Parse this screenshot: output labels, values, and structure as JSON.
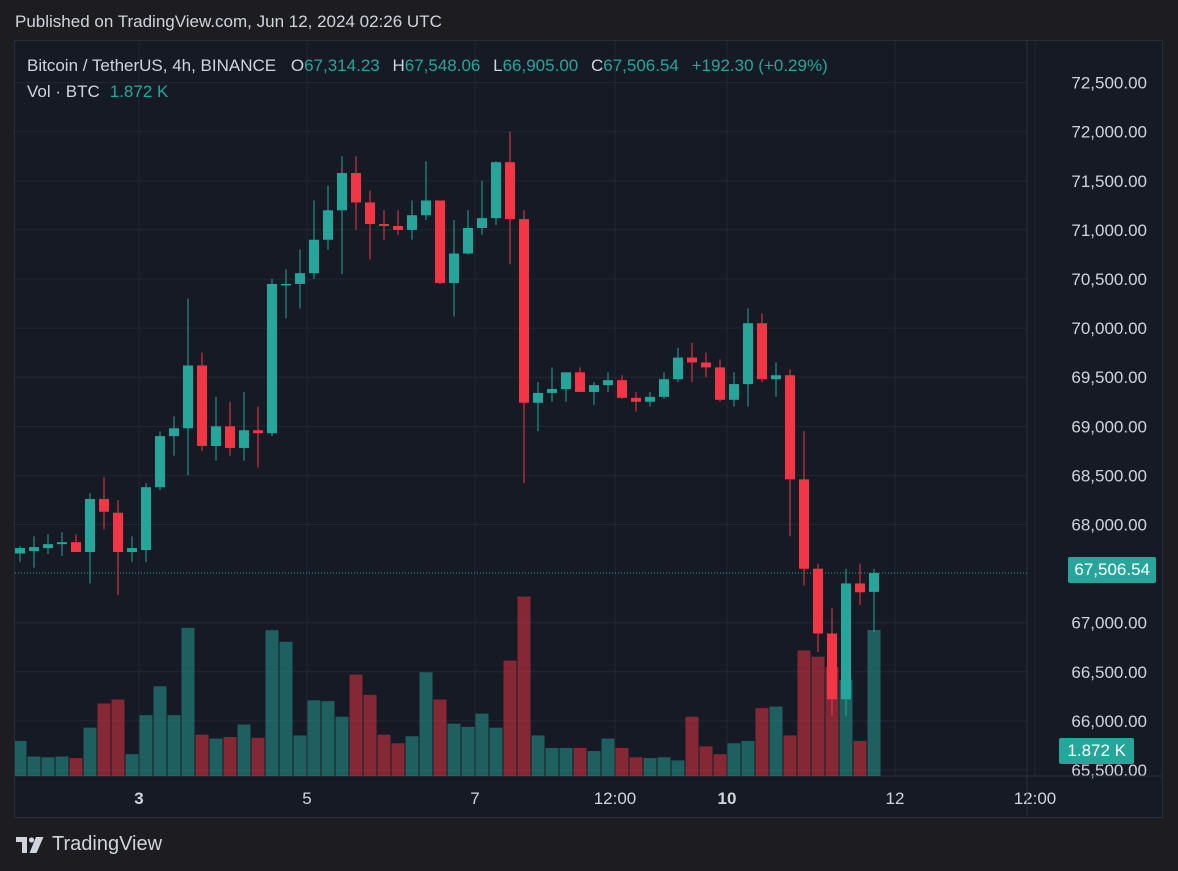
{
  "header": {
    "published": "Published on TradingView.com, Jun 12, 2024 02:26 UTC"
  },
  "legend": {
    "symbol": "Bitcoin / TetherUS, 4h, BINANCE",
    "open_label": "O",
    "open": "67,314.23",
    "high_label": "H",
    "high": "67,548.06",
    "low_label": "L",
    "low": "66,905.00",
    "close_label": "C",
    "close": "67,506.54",
    "change": "+192.30 (+0.29%)",
    "volume_label": "Vol · BTC",
    "volume": "1.872 K"
  },
  "last_price_tag": "67,506.54",
  "last_volume_tag": "1.872 K",
  "footer": {
    "brand": "TradingView"
  },
  "colors": {
    "up": "#26a69a",
    "down": "#f23645",
    "background": "#161a25",
    "grid": "#232734",
    "text": "#d1d4dc"
  },
  "chart_data": {
    "type": "candlestick",
    "ylim": [
      65500,
      72700
    ],
    "y_ticks": [
      "72,500.00",
      "72,000.00",
      "71,500.00",
      "71,000.00",
      "70,500.00",
      "70,000.00",
      "69,500.00",
      "69,000.00",
      "68,500.00",
      "68,000.00",
      "67,000.00",
      "66,500.00",
      "66,000.00",
      "65,500.00"
    ],
    "y_tick_values": [
      72500,
      72000,
      71500,
      71000,
      70500,
      70000,
      69500,
      69000,
      68500,
      68000,
      67000,
      66500,
      66000,
      65500
    ],
    "x_ticks": [
      {
        "label": "3",
        "index": 8.5,
        "bold": true
      },
      {
        "label": "5",
        "index": 20.5,
        "bold": false
      },
      {
        "label": "7",
        "index": 32.5,
        "bold": false
      },
      {
        "label": "12:00",
        "index": 42.5,
        "bold": false
      },
      {
        "label": "10",
        "index": 50.5,
        "bold": true
      },
      {
        "label": "12",
        "index": 62.5,
        "bold": false
      },
      {
        "label": "12:00",
        "index": 72.5,
        "bold": false
      }
    ],
    "last_price": 67506.54,
    "ohlc": [
      [
        67705,
        67780,
        67620,
        67760
      ],
      [
        67730,
        67880,
        67560,
        67770
      ],
      [
        67760,
        67900,
        67700,
        67800
      ],
      [
        67800,
        67920,
        67680,
        67820
      ],
      [
        67820,
        67900,
        67720,
        67720
      ],
      [
        67720,
        68320,
        67400,
        68260
      ],
      [
        68260,
        68480,
        67950,
        68130
      ],
      [
        68120,
        68250,
        67280,
        67720
      ],
      [
        67720,
        67880,
        67620,
        67760
      ],
      [
        67740,
        68420,
        67620,
        68380
      ],
      [
        68380,
        68950,
        68350,
        68900
      ],
      [
        68900,
        69100,
        68700,
        68980
      ],
      [
        68980,
        70300,
        68500,
        69620
      ],
      [
        69620,
        69750,
        68750,
        68800
      ],
      [
        68800,
        69300,
        68650,
        69000
      ],
      [
        69000,
        69250,
        68700,
        68780
      ],
      [
        68780,
        69350,
        68650,
        68960
      ],
      [
        68960,
        69200,
        68580,
        68930
      ],
      [
        68930,
        70500,
        68900,
        70450
      ],
      [
        70450,
        70600,
        70100,
        70450
      ],
      [
        70450,
        70800,
        70200,
        70560
      ],
      [
        70560,
        71300,
        70500,
        70900
      ],
      [
        70900,
        71450,
        70800,
        71200
      ],
      [
        71200,
        71750,
        70550,
        71580
      ],
      [
        71580,
        71750,
        71000,
        71280
      ],
      [
        71280,
        71400,
        70700,
        71060
      ],
      [
        71060,
        71200,
        70900,
        71040
      ],
      [
        71040,
        71200,
        70950,
        71000
      ],
      [
        71000,
        71300,
        70900,
        71150
      ],
      [
        71150,
        71700,
        71100,
        71300
      ],
      [
        71300,
        71300,
        70450,
        70460
      ],
      [
        70460,
        71100,
        70120,
        70760
      ],
      [
        70760,
        71200,
        70750,
        71020
      ],
      [
        71020,
        71500,
        70950,
        71120
      ],
      [
        71120,
        71700,
        71050,
        71690
      ],
      [
        71690,
        72000,
        70650,
        71110
      ],
      [
        71110,
        71200,
        68420,
        69240
      ],
      [
        69240,
        69450,
        68950,
        69340
      ],
      [
        69340,
        69600,
        69250,
        69380
      ],
      [
        69380,
        69550,
        69250,
        69550
      ],
      [
        69550,
        69600,
        69350,
        69350
      ],
      [
        69350,
        69450,
        69220,
        69420
      ],
      [
        69420,
        69550,
        69350,
        69470
      ],
      [
        69470,
        69520,
        69280,
        69290
      ],
      [
        69290,
        69350,
        69150,
        69250
      ],
      [
        69250,
        69350,
        69200,
        69300
      ],
      [
        69300,
        69550,
        69280,
        69480
      ],
      [
        69480,
        69800,
        69450,
        69700
      ],
      [
        69700,
        69850,
        69450,
        69650
      ],
      [
        69650,
        69750,
        69500,
        69600
      ],
      [
        69600,
        69680,
        69250,
        69270
      ],
      [
        69270,
        69550,
        69200,
        69430
      ],
      [
        69430,
        70200,
        69200,
        70050
      ],
      [
        70050,
        70150,
        69450,
        69480
      ],
      [
        69480,
        69650,
        69300,
        69520
      ],
      [
        69520,
        69580,
        67880,
        68460
      ],
      [
        68460,
        68950,
        67380,
        67550
      ],
      [
        67550,
        67600,
        66700,
        66890
      ],
      [
        66890,
        67150,
        66050,
        66220
      ],
      [
        66220,
        67550,
        66050,
        67400
      ],
      [
        67400,
        67600,
        67180,
        67310
      ],
      [
        67314.23,
        67548.06,
        66905,
        67506.54
      ]
    ],
    "volume": [
      0.45,
      0.25,
      0.24,
      0.25,
      0.23,
      0.62,
      0.93,
      0.98,
      0.28,
      0.78,
      1.15,
      0.78,
      1.9,
      0.53,
      0.48,
      0.5,
      0.66,
      0.49,
      1.87,
      1.72,
      0.52,
      0.97,
      0.96,
      0.76,
      1.3,
      1.04,
      0.53,
      0.42,
      0.51,
      1.33,
      0.98,
      0.67,
      0.63,
      0.8,
      0.62,
      1.48,
      2.3,
      0.52,
      0.36,
      0.36,
      0.36,
      0.32,
      0.48,
      0.36,
      0.24,
      0.23,
      0.24,
      0.2,
      0.76,
      0.38,
      0.28,
      0.42,
      0.45,
      0.87,
      0.89,
      0.52,
      1.61,
      1.53,
      1.4,
      1.23,
      0.45,
      1.872
    ]
  }
}
